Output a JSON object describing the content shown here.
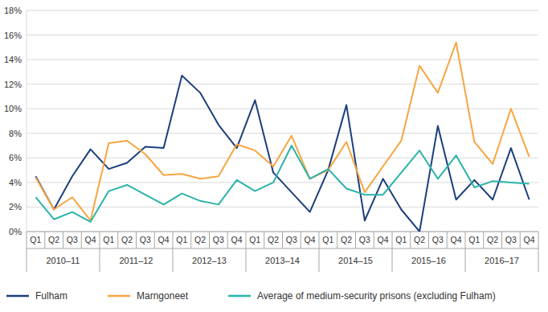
{
  "chart_data": {
    "type": "line",
    "categories": [
      "Q1",
      "Q2",
      "Q3",
      "Q4",
      "Q1",
      "Q2",
      "Q3",
      "Q4",
      "Q1",
      "Q2",
      "Q3",
      "Q4",
      "Q1",
      "Q2",
      "Q3",
      "Q4",
      "Q1",
      "Q2",
      "Q3",
      "Q4",
      "Q1",
      "Q2",
      "Q3",
      "Q4",
      "Q1",
      "Q2",
      "Q3",
      "Q4"
    ],
    "category_groups": [
      "2010–11",
      "2011–12",
      "2012–13",
      "2013–14",
      "2014–15",
      "2015–16",
      "2016–17"
    ],
    "series": [
      {
        "name": "Fulham",
        "color": "#1c3f7c",
        "values": [
          4.5,
          1.8,
          4.5,
          6.7,
          5.1,
          5.6,
          6.9,
          6.8,
          12.7,
          11.3,
          8.7,
          6.8,
          10.7,
          4.8,
          3.2,
          1.6,
          5.0,
          10.3,
          0.9,
          4.3,
          1.8,
          0.0,
          8.6,
          2.6,
          4.2,
          2.6,
          6.8,
          2.6
        ]
      },
      {
        "name": "Marngoneet",
        "color": "#f7a541",
        "values": [
          4.4,
          1.8,
          2.8,
          0.9,
          7.2,
          7.4,
          6.3,
          4.6,
          4.7,
          4.3,
          4.5,
          7.1,
          6.6,
          5.3,
          7.8,
          4.3,
          5.0,
          7.3,
          3.2,
          5.3,
          7.4,
          13.5,
          11.3,
          15.4,
          7.3,
          5.5,
          10.0,
          6.1
        ]
      },
      {
        "name": "Average of medium-security prisons (excluding Fulham)",
        "color": "#2bb3aa",
        "values": [
          2.8,
          1.0,
          1.6,
          0.8,
          3.3,
          3.8,
          3.0,
          2.2,
          3.1,
          2.5,
          2.2,
          4.2,
          3.3,
          4.0,
          7.0,
          4.3,
          5.1,
          3.5,
          3.0,
          3.0,
          4.8,
          6.6,
          4.3,
          6.2,
          3.6,
          4.1,
          4.0,
          3.9
        ]
      }
    ],
    "ylim": [
      0,
      18
    ],
    "yticks": [
      {
        "value": 0,
        "label": "0%"
      },
      {
        "value": 2,
        "label": "2%"
      },
      {
        "value": 4,
        "label": "4%"
      },
      {
        "value": 6,
        "label": "6%"
      },
      {
        "value": 8,
        "label": "8%"
      },
      {
        "value": 10,
        "label": "10%"
      },
      {
        "value": 12,
        "label": "12%"
      },
      {
        "value": 14,
        "label": "14%"
      },
      {
        "value": 16,
        "label": "16%"
      },
      {
        "value": 18,
        "label": "18%"
      }
    ],
    "grid": true,
    "legend": "bottom"
  }
}
